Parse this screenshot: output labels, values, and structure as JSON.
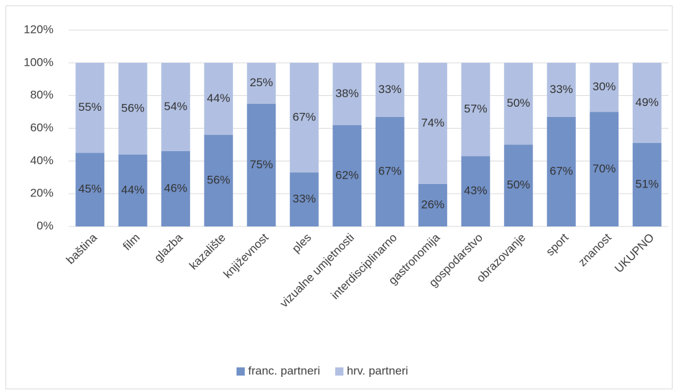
{
  "chart_data": {
    "type": "bar",
    "stacked": true,
    "categories": [
      "baština",
      "film",
      "glazba",
      "kazalište",
      "književnost",
      "ples",
      "vizualne umjetnosti",
      "interdisciplinarno",
      "gastronomija",
      "gospodarstvo",
      "obrazovanje",
      "sport",
      "znanost",
      "UKUPNO"
    ],
    "series": [
      {
        "name": "franc. partneri",
        "color": "#7291c7",
        "values": [
          45,
          44,
          46,
          56,
          75,
          33,
          62,
          67,
          26,
          43,
          50,
          67,
          70,
          51
        ],
        "value_labels": [
          "45%",
          "44%",
          "46%",
          "56%",
          "75%",
          "33%",
          "62%",
          "67%",
          "26%",
          "43%",
          "50%",
          "67%",
          "70%",
          "51%"
        ]
      },
      {
        "name": "hrv. partneri",
        "color": "#b1c0e2",
        "values": [
          55,
          56,
          54,
          44,
          25,
          67,
          38,
          33,
          74,
          57,
          50,
          33,
          30,
          49
        ],
        "value_labels": [
          "55%",
          "56%",
          "54%",
          "44%",
          "25%",
          "67%",
          "38%",
          "33%",
          "74%",
          "57%",
          "50%",
          "33%",
          "30%",
          "49%"
        ]
      }
    ],
    "ylim": [
      0,
      120
    ],
    "yticks": [
      {
        "value": 0,
        "label": "0%"
      },
      {
        "value": 20,
        "label": "20%"
      },
      {
        "value": 40,
        "label": "40%"
      },
      {
        "value": 60,
        "label": "60%"
      },
      {
        "value": 80,
        "label": "80%"
      },
      {
        "value": 100,
        "label": "100%"
      },
      {
        "value": 120,
        "label": "120%"
      }
    ],
    "grid": true,
    "legend": "bottom"
  }
}
